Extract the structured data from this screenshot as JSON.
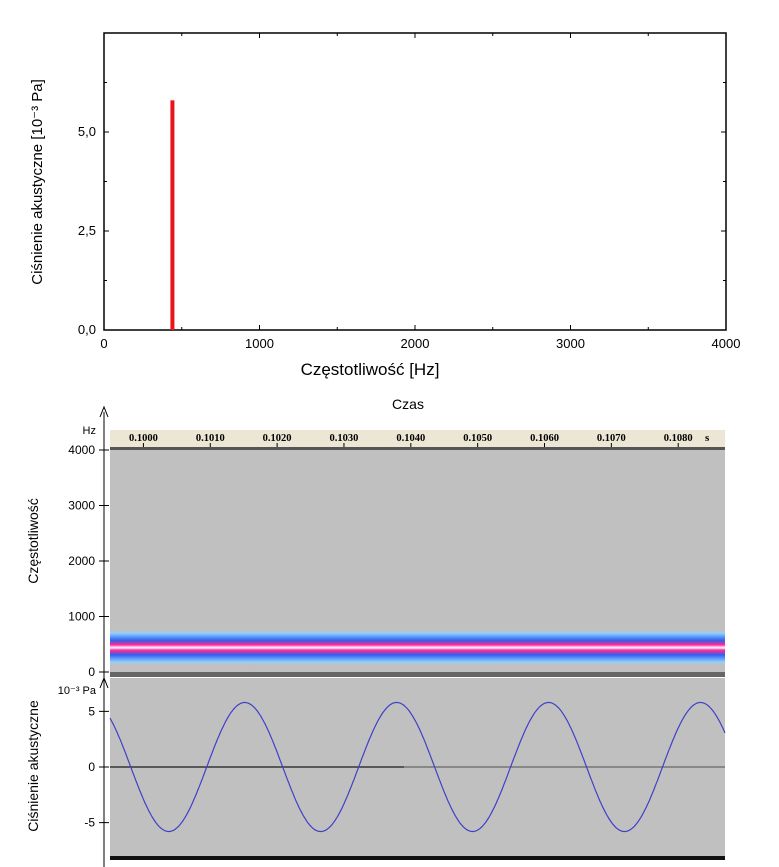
{
  "chart_data": [
    {
      "type": "bar",
      "ylabel": "Ciśnienie akustyczne [10⁻³ Pa]",
      "xlabel": "Częstotliwość [Hz]",
      "xlim": [
        0,
        4000
      ],
      "ylim": [
        0,
        7.5
      ],
      "x_ticks": [
        0,
        1000,
        2000,
        3000,
        4000
      ],
      "y_ticks": [
        "0,0",
        "2,5",
        "5,0"
      ],
      "y_tick_values": [
        0,
        2.5,
        5.0
      ],
      "bars": [
        {
          "x": 440,
          "value": 5.8
        }
      ],
      "bar_color": "#e8161b",
      "grid": false
    },
    {
      "type": "heatmap",
      "title": "Czas",
      "ylabel": "Częstotliwość",
      "y_unit": "Hz",
      "x_unit": "s",
      "xlim": [
        0.0995,
        0.1087
      ],
      "ylim": [
        0,
        4000
      ],
      "time_ticks": [
        "0.1000",
        "0.1010",
        "0.1020",
        "0.1030",
        "0.1040",
        "0.1050",
        "0.1060",
        "0.1070",
        "0.1080"
      ],
      "time_tick_values": [
        0.1,
        0.101,
        0.102,
        0.103,
        0.104,
        0.105,
        0.106,
        0.107,
        0.108
      ],
      "y_ticks": [
        "0",
        "1000",
        "2000",
        "3000",
        "4000"
      ],
      "y_tick_values": [
        0,
        1000,
        2000,
        3000,
        4000
      ],
      "band_center_hz": 440,
      "band_colors": [
        "#ff00ff",
        "#ff5080",
        "#3050ff",
        "#60b0ff"
      ],
      "background": "#c0c0c0"
    },
    {
      "type": "line",
      "ylabel": "Ciśnienie akustyczne",
      "y_unit": "10⁻³ Pa",
      "xlim": [
        0.0995,
        0.1087
      ],
      "ylim": [
        -8,
        8
      ],
      "y_ticks": [
        "5",
        "0",
        "-5"
      ],
      "y_tick_values": [
        5,
        0,
        -5
      ],
      "signal": {
        "amplitude": 5.8,
        "frequency_hz": 440,
        "phase_deg": 210
      },
      "line_color": "#4040c8",
      "background": "#c0c0c0"
    }
  ]
}
